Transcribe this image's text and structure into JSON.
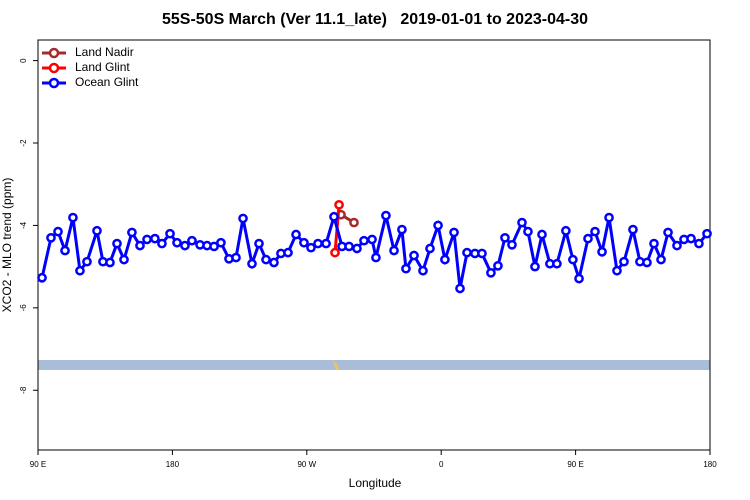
{
  "chart_data": {
    "type": "line",
    "title": "55S-50S March (Ver 11.1_late)   2019-01-01 to 2023-04-30",
    "x_label": "Longitude",
    "y_label": "XCO2 - MLO trend (ppm)",
    "xlim": [
      90,
      540
    ],
    "ylim": [
      -9.45,
      0.5
    ],
    "xticks": [
      {
        "value": 90,
        "label": "90 E"
      },
      {
        "value": 180,
        "label": "180"
      },
      {
        "value": 270,
        "label": "90 W"
      },
      {
        "value": 360,
        "label": "0"
      },
      {
        "value": 450,
        "label": "90 E"
      },
      {
        "value": 540,
        "label": "180"
      }
    ],
    "yticks": [
      0,
      -2,
      -4,
      -6,
      -8
    ],
    "grid": false,
    "legend": "top-left",
    "series": [
      {
        "name": "Land Nadir",
        "color": "#a52a2a",
        "x": [
          292.9,
          301.6
        ],
        "values": [
          -3.74,
          -3.93
        ]
      },
      {
        "name": "Land Glint",
        "color": "#ff0000",
        "x": [
          291.6,
          288.9
        ],
        "values": [
          -3.5,
          -4.66
        ]
      },
      {
        "name": "Ocean Glint",
        "color": "#0000ff",
        "x": [
          92.7,
          98.7,
          103.4,
          108.1,
          113.4,
          118.1,
          122.8,
          129.5,
          133.5,
          138.2,
          142.9,
          147.6,
          152.9,
          158.3,
          163,
          168.3,
          173,
          178.4,
          183.1,
          188.4,
          193.1,
          198.5,
          203.2,
          207.9,
          212.5,
          217.9,
          222.6,
          227.3,
          233.3,
          238,
          242.7,
          248,
          252.7,
          257.4,
          262.8,
          268.1,
          272.8,
          277.5,
          282.9,
          288.2,
          293.6,
          298.3,
          303.6,
          308.3,
          313.7,
          316.3,
          323,
          328.4,
          333.7,
          336.4,
          341.8,
          347.8,
          352.5,
          357.9,
          362.5,
          368.6,
          372.6,
          377.3,
          382.6,
          387.3,
          393.3,
          398,
          402.7,
          407.4,
          414.1,
          418.1,
          422.8,
          427.5,
          432.8,
          437.5,
          443.5,
          448.2,
          452.3,
          458.3,
          463,
          467.7,
          472.4,
          477.7,
          482.4,
          488.4,
          493.1,
          497.8,
          502.5,
          507.2,
          511.9,
          517.9,
          522.6,
          527.3,
          532.6,
          538
        ],
        "values": [
          -5.27,
          -4.3,
          -4.15,
          -4.61,
          -3.81,
          -5.1,
          -4.88,
          -4.13,
          -4.88,
          -4.9,
          -4.44,
          -4.83,
          -4.17,
          -4.49,
          -4.34,
          -4.32,
          -4.44,
          -4.2,
          -4.42,
          -4.49,
          -4.37,
          -4.47,
          -4.49,
          -4.51,
          -4.42,
          -4.81,
          -4.78,
          -3.83,
          -4.93,
          -4.44,
          -4.83,
          -4.9,
          -4.68,
          -4.66,
          -4.22,
          -4.42,
          -4.54,
          -4.44,
          -4.44,
          -3.79,
          -4.51,
          -4.51,
          -4.56,
          -4.37,
          -4.34,
          -4.78,
          -3.76,
          -4.61,
          -4.1,
          -5.05,
          -4.73,
          -5.1,
          -4.56,
          -4.0,
          -4.83,
          -4.17,
          -5.53,
          -4.66,
          -4.68,
          -4.68,
          -5.15,
          -4.98,
          -4.3,
          -4.47,
          -3.93,
          -4.15,
          -5.0,
          -4.22,
          -4.93,
          -4.93,
          -4.13,
          -4.83,
          -5.29,
          -4.32,
          -4.15,
          -4.64,
          -3.81,
          -5.1,
          -4.88,
          -4.1,
          -4.88,
          -4.9,
          -4.44,
          -4.83,
          -4.17,
          -4.49,
          -4.34,
          -4.32,
          -4.44,
          -4.2
        ]
      }
    ]
  }
}
